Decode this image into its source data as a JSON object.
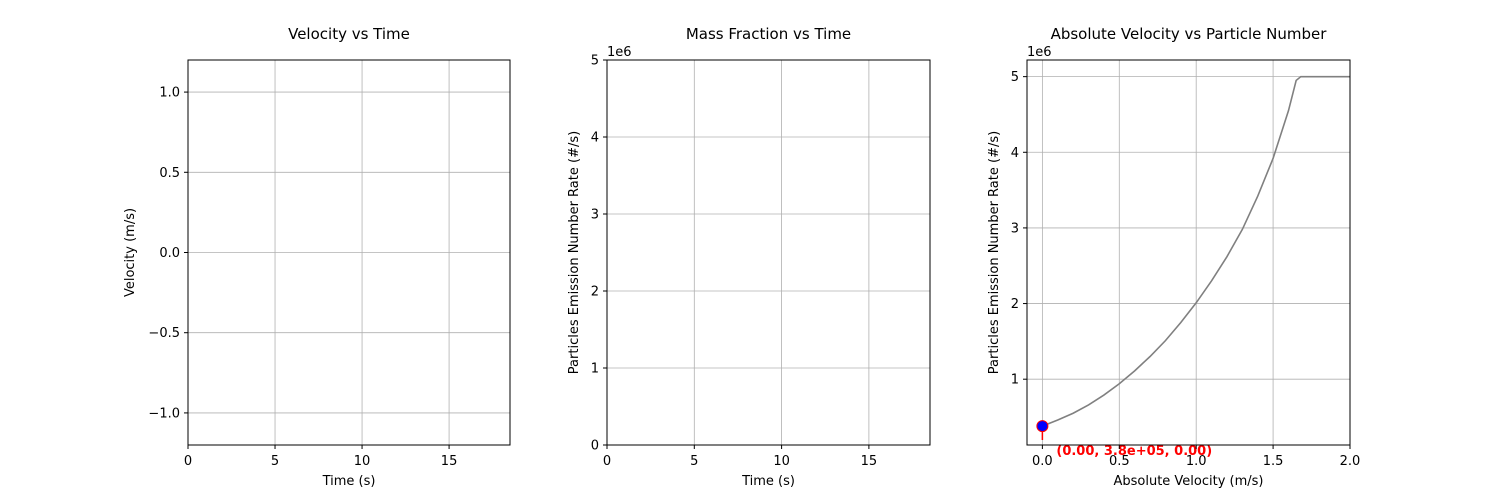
{
  "chart_data": [
    {
      "type": "line",
      "title": "Velocity vs Time",
      "xlabel": "Time (s)",
      "ylabel": "Velocity (m/s)",
      "xlim": [
        0,
        18.5
      ],
      "ylim": [
        -1.2,
        1.2
      ],
      "xticks": [
        0,
        5,
        10,
        15
      ],
      "xtick_labels": [
        "0",
        "5",
        "10",
        "15"
      ],
      "yticks": [
        -1.0,
        -0.5,
        0.0,
        0.5,
        1.0
      ],
      "ytick_labels": [
        "−1.0",
        "−0.5",
        "0.0",
        "0.5",
        "1.0"
      ],
      "y_offset_label": "",
      "grid": true,
      "series": []
    },
    {
      "type": "line",
      "title": "Mass Fraction vs Time",
      "xlabel": "Time (s)",
      "ylabel": "Particles Emission Number Rate (#/s)",
      "xlim": [
        0,
        18.5
      ],
      "ylim": [
        0,
        5
      ],
      "xticks": [
        0,
        5,
        10,
        15
      ],
      "xtick_labels": [
        "0",
        "5",
        "10",
        "15"
      ],
      "yticks": [
        0,
        1,
        2,
        3,
        4,
        5
      ],
      "ytick_labels": [
        "0",
        "1",
        "2",
        "3",
        "4",
        "5"
      ],
      "y_offset_label": "1e6",
      "grid": true,
      "series": []
    },
    {
      "type": "line",
      "title": "Absolute Velocity vs Particle Number",
      "xlabel": "Absolute Velocity (m/s)",
      "ylabel": "Particles Emission Number Rate (#/s)",
      "xlim": [
        -0.1,
        2.0
      ],
      "ylim": [
        0.13,
        5.22
      ],
      "xticks": [
        0.0,
        0.5,
        1.0,
        1.5,
        2.0
      ],
      "xtick_labels": [
        "0.0",
        "0.5",
        "1.0",
        "1.5",
        "2.0"
      ],
      "yticks": [
        1,
        2,
        3,
        4,
        5
      ],
      "ytick_labels": [
        "1",
        "2",
        "3",
        "4",
        "5"
      ],
      "y_offset_label": "1e6",
      "grid": true,
      "series": [
        {
          "color": "#808080",
          "x": [
            0.0,
            0.1,
            0.2,
            0.3,
            0.4,
            0.5,
            0.6,
            0.7,
            0.8,
            0.9,
            1.0,
            1.1,
            1.2,
            1.3,
            1.4,
            1.5,
            1.6,
            1.65,
            1.68,
            1.7,
            1.8,
            1.9,
            2.0
          ],
          "y": [
            0.38,
            0.46,
            0.55,
            0.66,
            0.79,
            0.94,
            1.11,
            1.3,
            1.51,
            1.75,
            2.01,
            2.3,
            2.62,
            2.98,
            3.42,
            3.92,
            4.55,
            4.95,
            5.0,
            5.0,
            5.0,
            5.0,
            5.0
          ]
        }
      ],
      "marker": {
        "x": 0.0,
        "y": 0.38,
        "color": "#0000ff",
        "edge_color": "#ff0000"
      },
      "annotation": {
        "text": "(0.00, 3.8e+05, 0.00)",
        "color": "#ff0000"
      }
    }
  ]
}
